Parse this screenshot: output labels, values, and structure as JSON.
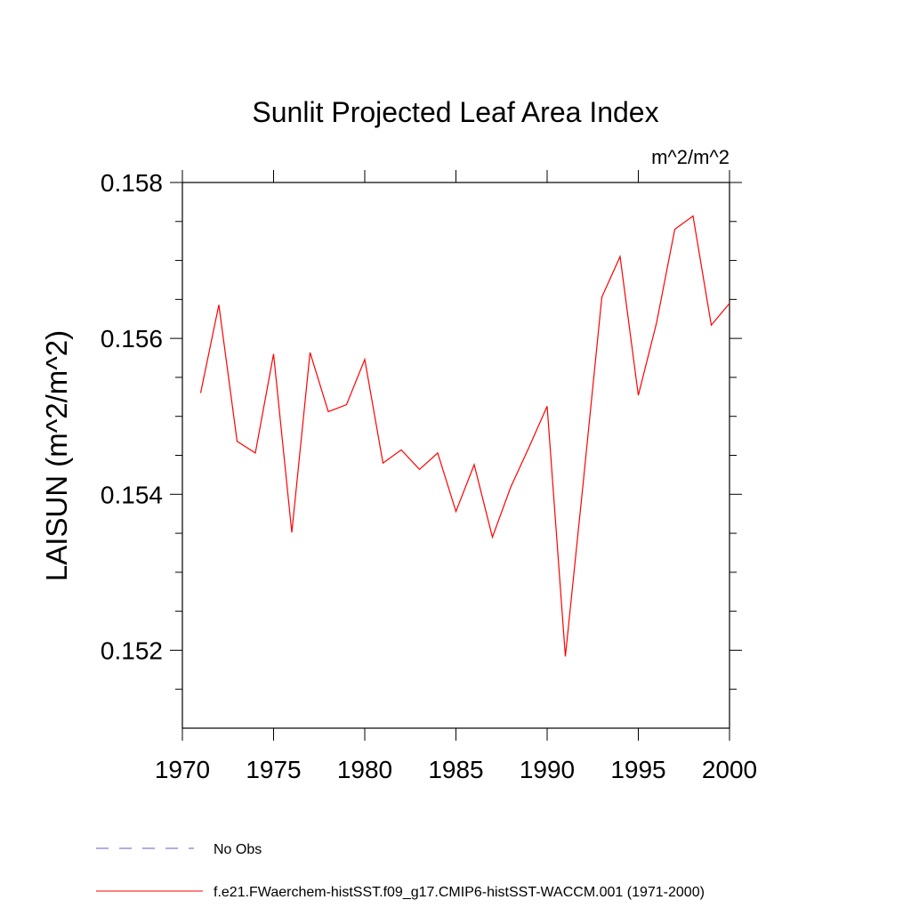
{
  "chart_data": {
    "type": "line",
    "title": "Sunlit Projected Leaf Area Index",
    "units_label": "m^2/m^2",
    "ylabel": "LAISUN  (m^2/m^2)",
    "x": [
      1971,
      1972,
      1973,
      1974,
      1975,
      1976,
      1977,
      1978,
      1979,
      1980,
      1981,
      1982,
      1983,
      1984,
      1985,
      1986,
      1987,
      1988,
      1989,
      1990,
      1991,
      1992,
      1993,
      1994,
      1995,
      1996,
      1997,
      1998,
      1999,
      2000
    ],
    "series": [
      {
        "name": "f.e21.FWaerchem-histSST.f09_g17.CMIP6-histSST-WACCM.001 (1971-2000)",
        "color": "#ff0000",
        "values": [
          0.1553,
          0.15643,
          0.15468,
          0.15453,
          0.1558,
          0.15351,
          0.15582,
          0.15506,
          0.15515,
          0.15573,
          0.1544,
          0.15457,
          0.15432,
          0.15453,
          0.15378,
          0.15438,
          0.15345,
          0.15409,
          0.1546,
          0.15513,
          0.15192,
          0.1542,
          0.15653,
          0.15705,
          0.15527,
          0.1562,
          0.1574,
          0.15757,
          0.15617,
          0.15645
        ]
      }
    ],
    "extra_legend_entries": [
      {
        "name": "No Obs",
        "color": "#6a5acd",
        "dashed": true
      }
    ],
    "xlim": [
      1970,
      2000
    ],
    "xticks": [
      1970,
      1975,
      1980,
      1985,
      1990,
      1995,
      2000
    ],
    "ylim": [
      0.151,
      0.158
    ],
    "yticks": [
      0.152,
      0.154,
      0.156,
      0.158
    ],
    "yminorticks": [
      0.1515,
      0.1525,
      0.153,
      0.1535,
      0.1545,
      0.155,
      0.1555,
      0.1565,
      0.157,
      0.1575
    ]
  }
}
